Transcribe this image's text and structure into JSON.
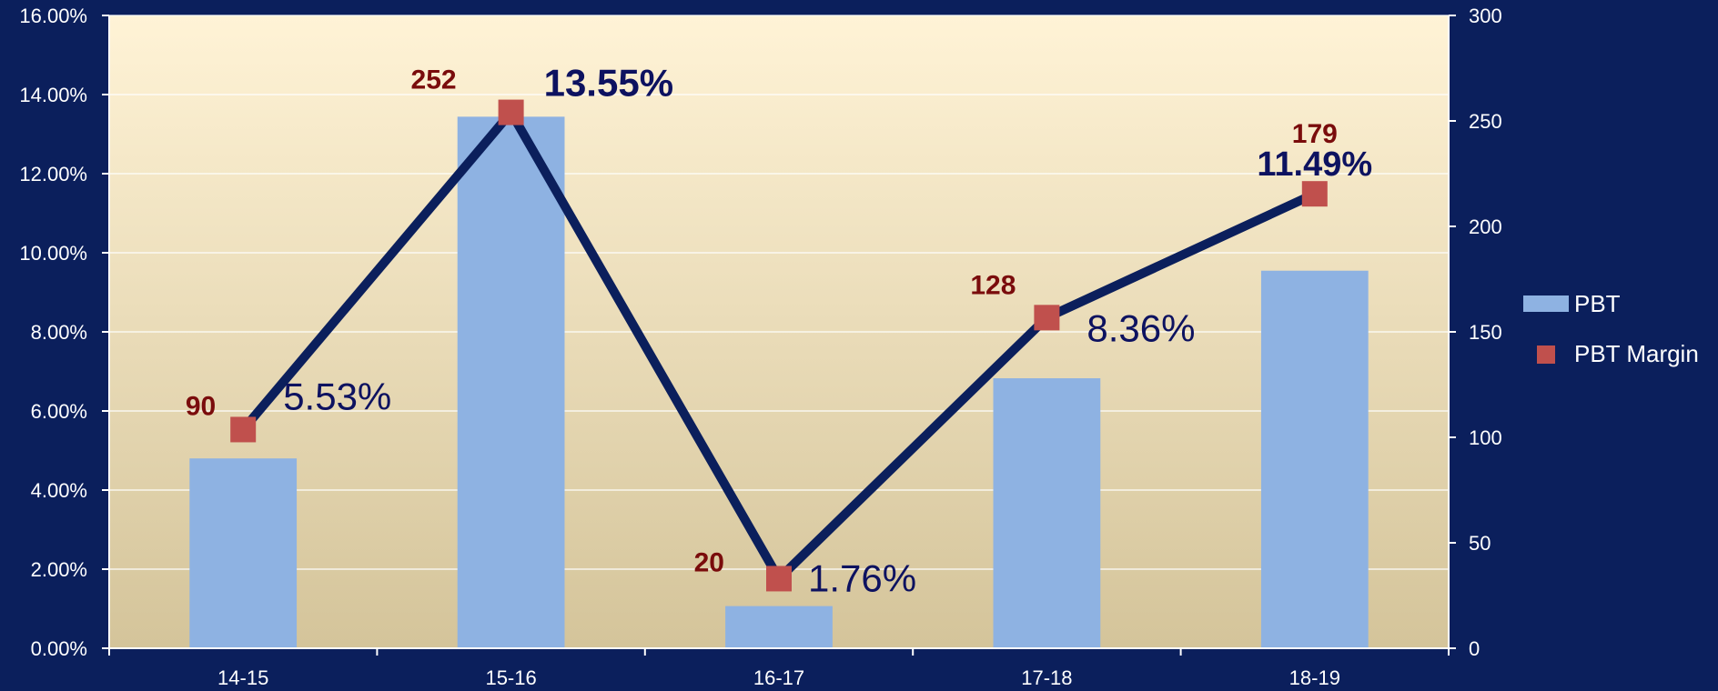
{
  "chart_data": {
    "type": "bar",
    "categories": [
      "14-15",
      "15-16",
      "16-17",
      "17-18",
      "18-19"
    ],
    "series": [
      {
        "name": "PBT",
        "type": "bar",
        "axis": "right",
        "values": [
          90,
          252,
          20,
          128,
          179
        ],
        "labels": [
          "90",
          "252",
          "20",
          "128",
          "179"
        ]
      },
      {
        "name": "PBT Margin",
        "type": "line",
        "axis": "left",
        "values": [
          5.53,
          13.55,
          1.76,
          8.36,
          11.49
        ],
        "labels": [
          "5.53%",
          "13.55%",
          "1.76%",
          "8.36%",
          "11.49%"
        ]
      }
    ],
    "left_axis": {
      "min": 0,
      "max": 16,
      "step": 2,
      "tick_labels": [
        "0.00%",
        "2.00%",
        "4.00%",
        "6.00%",
        "8.00%",
        "10.00%",
        "12.00%",
        "14.00%",
        "16.00%"
      ]
    },
    "right_axis": {
      "min": 0,
      "max": 300,
      "step": 50,
      "tick_labels": [
        "0",
        "50",
        "100",
        "150",
        "200",
        "250",
        "300"
      ]
    },
    "legend": {
      "placement": "right",
      "items": [
        "PBT",
        "PBT Margin"
      ]
    },
    "grid": true
  },
  "colors": {
    "background": "#0b1f5c",
    "plot_top": "#fff3d6",
    "plot_bottom": "#d4c49a",
    "bar": "#8eb2e2",
    "line": "#0b1f5c",
    "marker": "#c0504d",
    "pbt_label": "#7a0c0c",
    "margin_label": "#0d1260",
    "axis_text": "#ffffff"
  }
}
